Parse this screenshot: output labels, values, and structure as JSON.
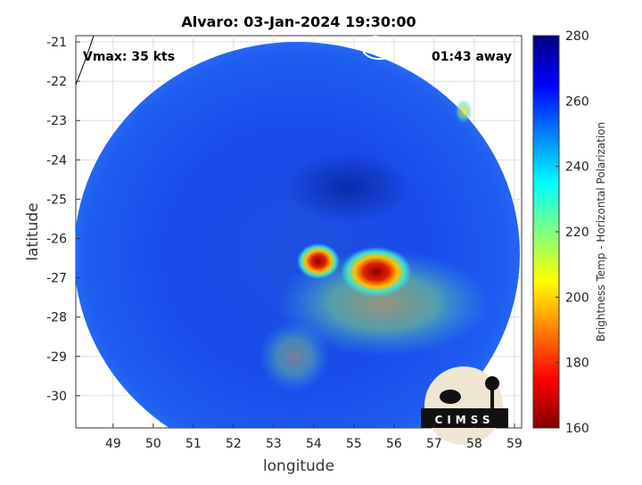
{
  "map": {
    "title": "Alvaro: 03-Jan-2024 19:30:00",
    "annotation_left": "Vmax: 35 kts",
    "annotation_right": "01:43 away",
    "xlabel": "longitude",
    "ylabel": "latitude",
    "xlim": [
      48.07,
      59.18
    ],
    "ylim": [
      -30.82,
      -20.84
    ],
    "xticks": [
      49,
      50,
      51,
      52,
      53,
      54,
      55,
      56,
      57,
      58,
      59
    ],
    "yticks": [
      -21,
      -22,
      -23,
      -24,
      -25,
      -26,
      -27,
      -28,
      -29,
      -30
    ],
    "grid": true,
    "colorbar": {
      "label": "Brightness Temp - Horizontal Polarization",
      "lim": [
        160,
        280
      ],
      "ticks": [
        160,
        180,
        200,
        220,
        240,
        260,
        280
      ]
    },
    "logo": "CIMSS"
  }
}
